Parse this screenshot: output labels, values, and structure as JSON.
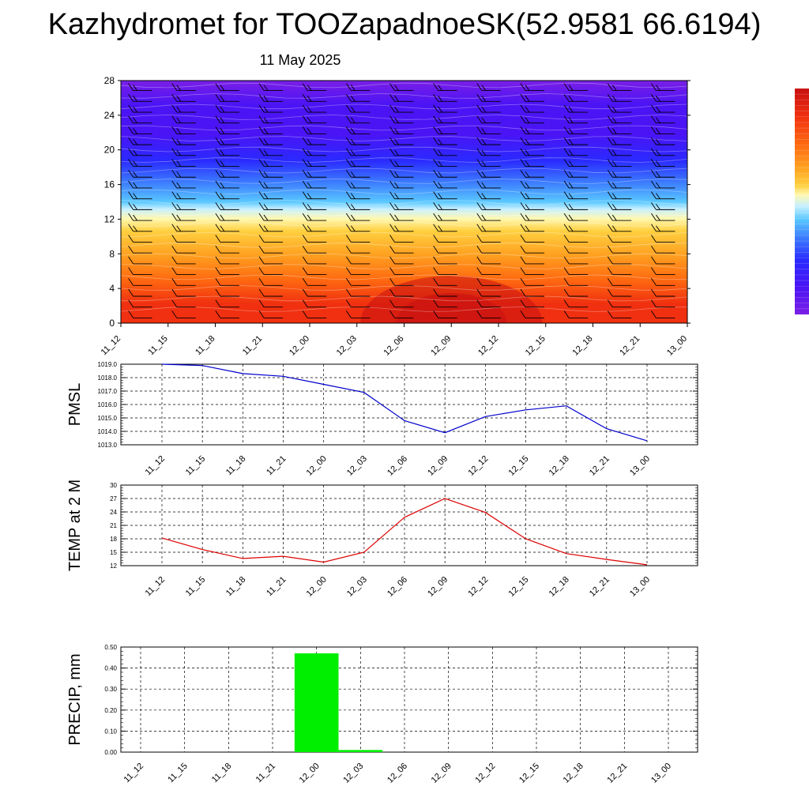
{
  "title": "Kazhydromet for TOOZapadnoeSK(52.9581 66.6194)",
  "date": "11 May 2025",
  "time_labels": [
    "11_12",
    "11_15",
    "11_18",
    "11_21",
    "12_00",
    "12_03",
    "12_06",
    "12_09",
    "12_12",
    "12_15",
    "12_18",
    "12_21",
    "13_00"
  ],
  "colors": {
    "pmsl_line": "#0000cc",
    "temp_line": "#dd0000",
    "precip_bar": "#00ee00",
    "grid": "#000000",
    "colormap": [
      "#7a1fe6",
      "#4b14f5",
      "#2a2aff",
      "#3c7cff",
      "#5ac8ff",
      "#c8f0ff",
      "#fff8b0",
      "#ffd040",
      "#ffa020",
      "#ff6a10",
      "#f03010",
      "#c81010"
    ]
  },
  "chart_data": [
    {
      "type": "heatmap",
      "title": "",
      "xlabel": "",
      "ylabel": "",
      "x": [
        "11_12",
        "11_15",
        "11_18",
        "11_21",
        "12_00",
        "12_03",
        "12_06",
        "12_09",
        "12_12",
        "12_15",
        "12_18",
        "12_21",
        "13_00"
      ],
      "ylim": [
        0,
        28
      ],
      "yticks": [
        0,
        4,
        8,
        12,
        16,
        20,
        24,
        28
      ],
      "overlay": "wind-barbs",
      "colorbar": "right"
    },
    {
      "type": "line",
      "ylabel": "PMSL",
      "x": [
        "11_12",
        "11_15",
        "11_18",
        "11_21",
        "12_00",
        "12_03",
        "12_06",
        "12_09",
        "12_12",
        "12_15",
        "12_18",
        "12_21",
        "13_00"
      ],
      "values": [
        1019.0,
        1018.9,
        1018.3,
        1018.1,
        1017.5,
        1016.9,
        1014.8,
        1013.9,
        1015.1,
        1015.6,
        1015.9,
        1014.2,
        1013.3
      ],
      "ylim": [
        1013.0,
        1019.0
      ],
      "yticks": [
        "1013.0",
        "1014.0",
        "1015.0",
        "1016.0",
        "1017.0",
        "1018.0",
        "1019.0"
      ],
      "grid": true
    },
    {
      "type": "line",
      "ylabel": "TEMP at 2 M",
      "x": [
        "11_12",
        "11_15",
        "11_18",
        "11_21",
        "12_00",
        "12_03",
        "12_06",
        "12_09",
        "12_12",
        "12_15",
        "12_18",
        "12_21",
        "13_00"
      ],
      "values": [
        18.2,
        15.6,
        13.6,
        14.1,
        12.8,
        15.0,
        22.8,
        27.0,
        23.9,
        18.0,
        14.7,
        13.4,
        12.2
      ],
      "ylim": [
        12,
        30
      ],
      "yticks": [
        "12",
        "15",
        "18",
        "21",
        "24",
        "27",
        "30"
      ],
      "grid": true
    },
    {
      "type": "bar",
      "ylabel": "PRECIP, mm",
      "categories": [
        "11_12",
        "11_15",
        "11_18",
        "11_21",
        "12_00",
        "12_03",
        "12_06",
        "12_09",
        "12_12",
        "12_15",
        "12_18",
        "12_21",
        "13_00"
      ],
      "values": [
        0,
        0,
        0,
        0,
        0.47,
        0.01,
        0,
        0,
        0,
        0,
        0,
        0,
        0
      ],
      "ylim": [
        0,
        0.5
      ],
      "yticks": [
        "0.00",
        "0.10",
        "0.20",
        "0.30",
        "0.40",
        "0.50"
      ],
      "grid": true
    }
  ]
}
